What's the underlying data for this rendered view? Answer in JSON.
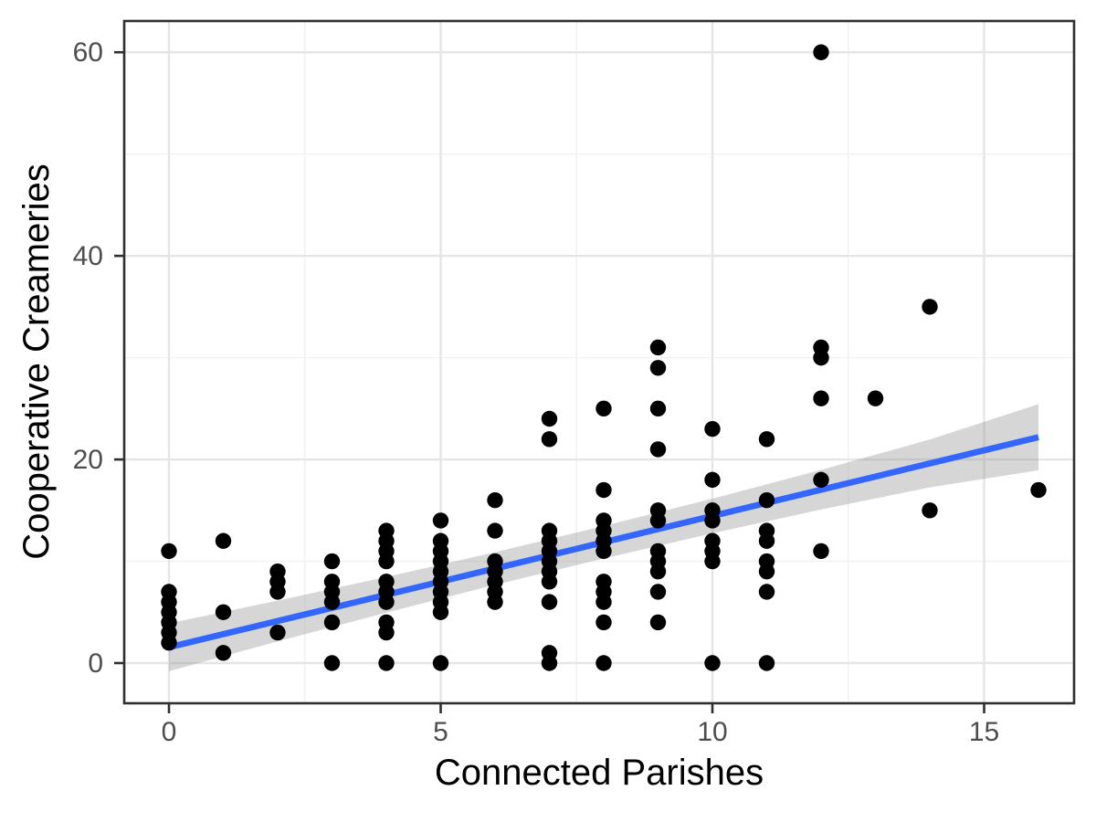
{
  "figure": {
    "xlabel": "Connected Parishes",
    "ylabel": "Cooperative Creameries"
  },
  "chart_data": {
    "type": "scatter",
    "title": "",
    "xlabel": "Connected Parishes",
    "ylabel": "Cooperative Creameries",
    "legend": "none",
    "grid": "major and minor, light gray on white panel with dark border",
    "x_ticks": [
      0,
      5,
      10,
      15
    ],
    "x_minor_ticks": [
      2.5,
      7.5,
      12.5
    ],
    "y_ticks": [
      0,
      20,
      40,
      60
    ],
    "y_minor_ticks": [
      10,
      30,
      50
    ],
    "xlim": [
      -0.85,
      16.65
    ],
    "ylim": [
      -4,
      63
    ],
    "point_color": "#000000",
    "point_radius_px": 8.7,
    "smooth_line_color": "#3366FF",
    "band_color": "#999999",
    "band_opacity": 0.4,
    "points": [
      [
        0,
        11
      ],
      [
        0,
        7
      ],
      [
        0,
        6
      ],
      [
        0,
        5
      ],
      [
        0,
        4
      ],
      [
        0,
        3
      ],
      [
        0,
        2
      ],
      [
        1,
        12
      ],
      [
        1,
        5
      ],
      [
        1,
        1
      ],
      [
        2,
        9
      ],
      [
        2,
        8
      ],
      [
        2,
        7
      ],
      [
        2,
        3
      ],
      [
        3,
        10
      ],
      [
        3,
        8
      ],
      [
        3,
        7
      ],
      [
        3,
        6
      ],
      [
        3,
        4
      ],
      [
        3,
        0
      ],
      [
        4,
        13
      ],
      [
        4,
        12
      ],
      [
        4,
        11
      ],
      [
        4,
        10
      ],
      [
        4,
        8
      ],
      [
        4,
        7
      ],
      [
        4,
        6
      ],
      [
        4,
        4
      ],
      [
        4,
        3
      ],
      [
        4,
        0
      ],
      [
        5,
        14
      ],
      [
        5,
        12
      ],
      [
        5,
        11
      ],
      [
        5,
        10
      ],
      [
        5,
        9
      ],
      [
        5,
        8
      ],
      [
        5,
        7
      ],
      [
        5,
        6
      ],
      [
        5,
        5
      ],
      [
        5,
        0
      ],
      [
        6,
        16
      ],
      [
        6,
        13
      ],
      [
        6,
        10
      ],
      [
        6,
        9
      ],
      [
        6,
        8
      ],
      [
        6,
        7
      ],
      [
        6,
        6
      ],
      [
        7,
        24
      ],
      [
        7,
        22
      ],
      [
        7,
        13
      ],
      [
        7,
        12
      ],
      [
        7,
        11
      ],
      [
        7,
        10
      ],
      [
        7,
        9
      ],
      [
        7,
        8
      ],
      [
        7,
        6
      ],
      [
        7,
        1
      ],
      [
        7,
        0
      ],
      [
        8,
        25
      ],
      [
        8,
        17
      ],
      [
        8,
        14
      ],
      [
        8,
        13
      ],
      [
        8,
        12
      ],
      [
        8,
        11
      ],
      [
        8,
        8
      ],
      [
        8,
        7
      ],
      [
        8,
        6
      ],
      [
        8,
        4
      ],
      [
        8,
        0
      ],
      [
        9,
        31
      ],
      [
        9,
        29
      ],
      [
        9,
        25
      ],
      [
        9,
        21
      ],
      [
        9,
        15
      ],
      [
        9,
        14
      ],
      [
        9,
        11
      ],
      [
        9,
        10
      ],
      [
        9,
        9
      ],
      [
        9,
        7
      ],
      [
        9,
        4
      ],
      [
        10,
        23
      ],
      [
        10,
        18
      ],
      [
        10,
        15
      ],
      [
        10,
        14
      ],
      [
        10,
        12
      ],
      [
        10,
        11
      ],
      [
        10,
        10
      ],
      [
        10,
        0
      ],
      [
        11,
        22
      ],
      [
        11,
        16
      ],
      [
        11,
        13
      ],
      [
        11,
        12
      ],
      [
        11,
        10
      ],
      [
        11,
        9
      ],
      [
        11,
        7
      ],
      [
        11,
        0
      ],
      [
        12,
        60
      ],
      [
        12,
        31
      ],
      [
        12,
        30
      ],
      [
        12,
        26
      ],
      [
        12,
        18
      ],
      [
        12,
        11
      ],
      [
        13,
        26
      ],
      [
        14,
        35
      ],
      [
        14,
        15
      ],
      [
        16,
        17
      ]
    ],
    "smooth": {
      "x": [
        0,
        2,
        4,
        6,
        8,
        10,
        12,
        14,
        16
      ],
      "line": [
        1.55,
        4.13,
        6.71,
        9.29,
        11.87,
        14.45,
        17.03,
        19.61,
        22.19
      ],
      "lower": [
        -0.8,
        2.13,
        4.96,
        7.69,
        10.27,
        12.75,
        15.08,
        17.26,
        18.94
      ],
      "upper": [
        3.9,
        6.13,
        8.46,
        10.89,
        13.47,
        16.15,
        18.98,
        21.96,
        25.44
      ]
    }
  }
}
